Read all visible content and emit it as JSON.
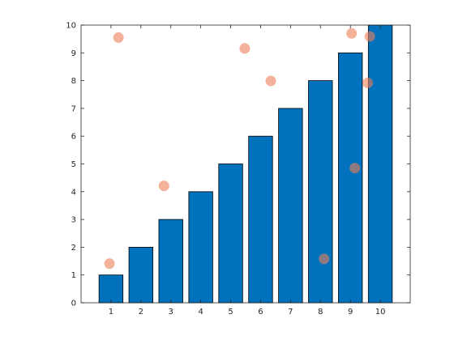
{
  "colors": {
    "bar_fill": "#0072BD",
    "bar_edge": "#000000",
    "scatter_fill": "#EE7F57",
    "axis": "#262626",
    "background": "#ffffff"
  },
  "chart_data": {
    "type": "bar",
    "title": "",
    "xlabel": "",
    "ylabel": "",
    "grid": false,
    "xlim": [
      0,
      11
    ],
    "ylim": [
      0,
      10
    ],
    "xticks": [
      1,
      2,
      3,
      4,
      5,
      6,
      7,
      8,
      9,
      10
    ],
    "yticks": [
      0,
      1,
      2,
      3,
      4,
      5,
      6,
      7,
      8,
      9,
      10
    ],
    "categories": [
      1,
      2,
      3,
      4,
      5,
      6,
      7,
      8,
      9,
      10
    ],
    "values": [
      1,
      2,
      3,
      4,
      5,
      6,
      7,
      8,
      9,
      10
    ],
    "bar_width": 0.8,
    "overlay_scatter": {
      "type": "scatter",
      "opacity": 0.6,
      "points": [
        {
          "x": 1.25,
          "y": 9.55
        },
        {
          "x": 0.95,
          "y": 1.41
        },
        {
          "x": 2.77,
          "y": 4.21
        },
        {
          "x": 5.47,
          "y": 9.16
        },
        {
          "x": 6.34,
          "y": 7.99
        },
        {
          "x": 8.12,
          "y": 1.58
        },
        {
          "x": 9.04,
          "y": 9.7
        },
        {
          "x": 9.15,
          "y": 4.85
        },
        {
          "x": 9.58,
          "y": 7.92
        },
        {
          "x": 9.65,
          "y": 9.59
        }
      ]
    }
  }
}
